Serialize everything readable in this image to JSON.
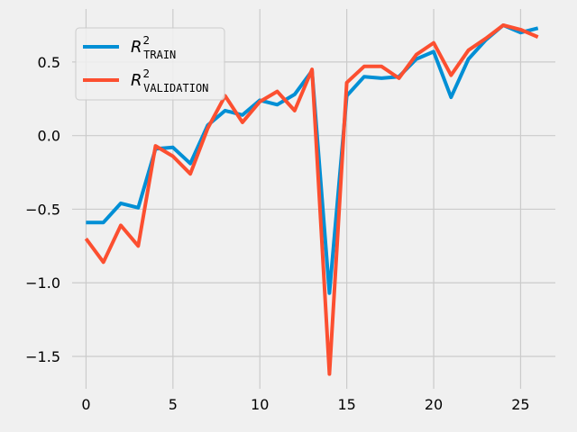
{
  "chart_data": {
    "type": "line",
    "title": "",
    "xlabel": "",
    "ylabel": "",
    "xlim": [
      -0.8,
      27.0
    ],
    "ylim": [
      -1.72,
      0.86
    ],
    "x_ticks": [
      0,
      5,
      10,
      15,
      20,
      25
    ],
    "x_tick_labels": [
      "0",
      "5",
      "10",
      "15",
      "20",
      "25"
    ],
    "y_ticks": [
      -1.5,
      -1.0,
      -0.5,
      0.0,
      0.5
    ],
    "y_tick_labels": [
      "−1.5",
      "−1.0",
      "−0.5",
      "0.0",
      "0.5"
    ],
    "grid": true,
    "legend_position": "top-left",
    "x": [
      0,
      1,
      2,
      3,
      4,
      5,
      6,
      7,
      8,
      9,
      10,
      11,
      12,
      13,
      14,
      15,
      16,
      17,
      18,
      19,
      20,
      21,
      22,
      23,
      24,
      25,
      26
    ],
    "series": [
      {
        "name": "R2_TRAIN",
        "legend_main": "R",
        "legend_sup": "2",
        "legend_sub": "TRAIN",
        "color": "#008fd5",
        "values": [
          -0.59,
          -0.59,
          -0.46,
          -0.49,
          -0.09,
          -0.08,
          -0.19,
          0.07,
          0.17,
          0.14,
          0.24,
          0.21,
          0.28,
          0.44,
          -1.07,
          0.27,
          0.4,
          0.39,
          0.4,
          0.52,
          0.57,
          0.26,
          0.52,
          0.65,
          0.75,
          0.7,
          0.73
        ]
      },
      {
        "name": "R2_VALIDATION",
        "legend_main": "R",
        "legend_sup": "2",
        "legend_sub": "VALIDATION",
        "color": "#fc4f30",
        "values": [
          -0.7,
          -0.86,
          -0.61,
          -0.75,
          -0.07,
          -0.14,
          -0.26,
          0.05,
          0.27,
          0.09,
          0.23,
          0.3,
          0.17,
          0.45,
          -1.62,
          0.36,
          0.47,
          0.47,
          0.39,
          0.55,
          0.63,
          0.41,
          0.58,
          0.66,
          0.75,
          0.72,
          0.67
        ]
      }
    ]
  }
}
